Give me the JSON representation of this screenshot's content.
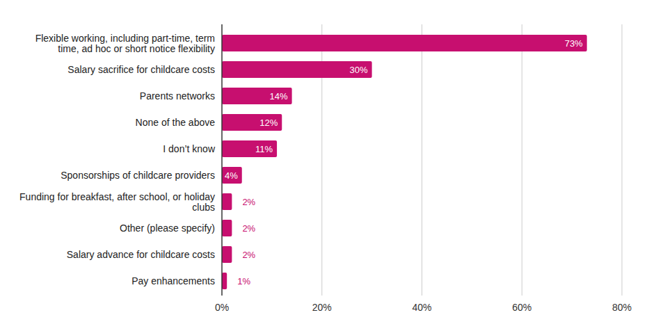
{
  "chart_data": {
    "type": "bar",
    "orientation": "horizontal",
    "categories": [
      "Flexible working, including part-time, term time, ad hoc or short notice flexibility",
      "Salary sacrifice for childcare costs",
      "Parents networks",
      "None of the above",
      "I don’t know",
      "Sponsorships of childcare providers",
      "Funding for breakfast, after school, or holiday clubs",
      "Other (please specify)",
      "Salary advance for childcare costs",
      "Pay enhancements"
    ],
    "values": [
      73,
      30,
      14,
      12,
      11,
      4,
      2,
      2,
      2,
      1
    ],
    "value_labels": [
      "73%",
      "30%",
      "14%",
      "12%",
      "11%",
      "4%",
      "2%",
      "2%",
      "2%",
      "1%"
    ],
    "color": "#c70f6f",
    "xlim": [
      0,
      80
    ],
    "xticks": [
      {
        "value": 0,
        "label": "0%"
      },
      {
        "value": 20,
        "label": "20%"
      },
      {
        "value": 40,
        "label": "40%"
      },
      {
        "value": 60,
        "label": "60%"
      },
      {
        "value": 80,
        "label": "80%"
      }
    ],
    "grid": true,
    "data_labels": true
  }
}
